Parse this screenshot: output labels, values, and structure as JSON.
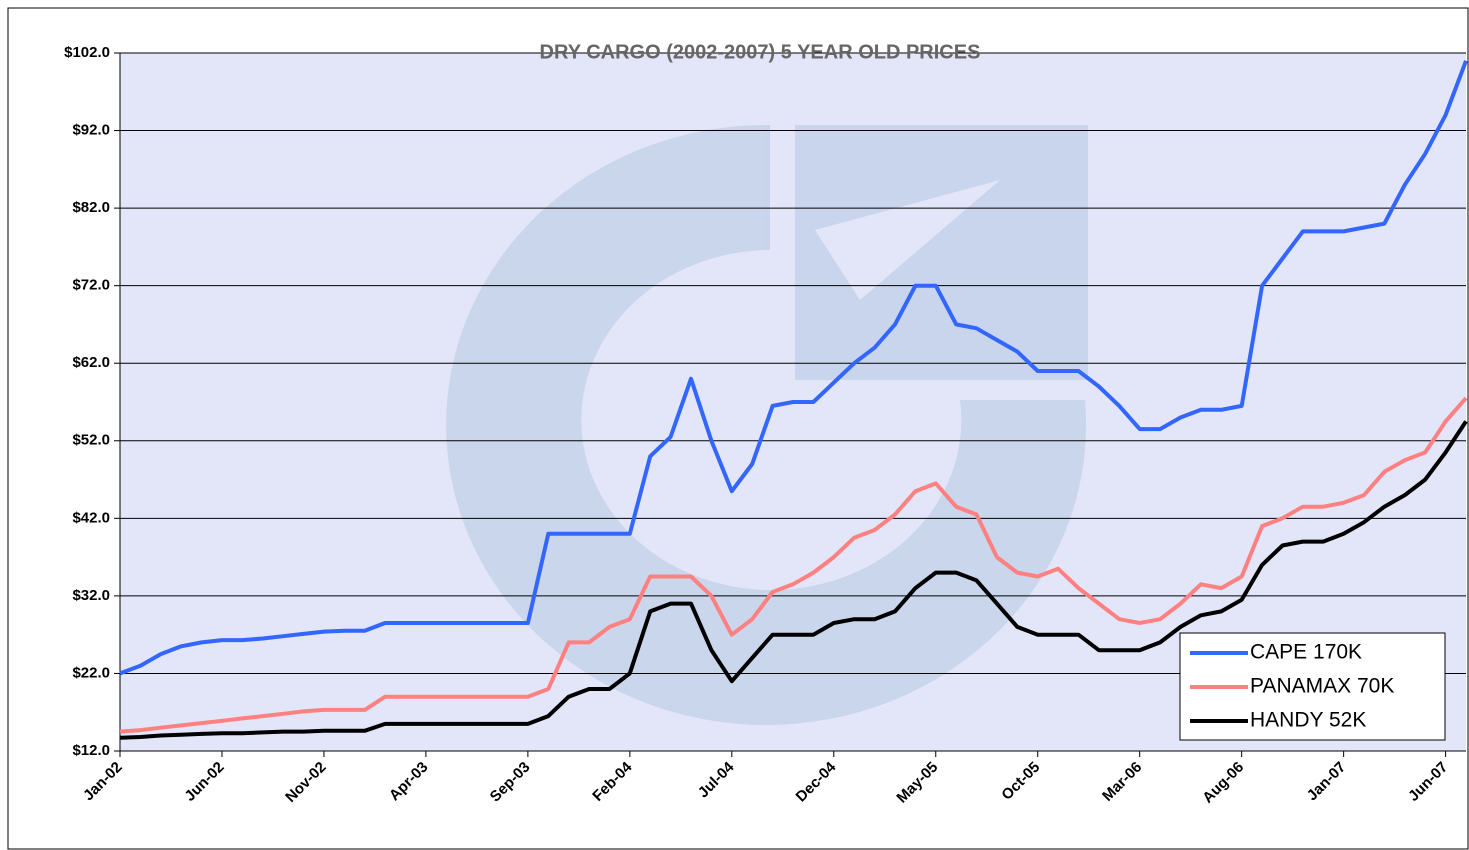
{
  "chart_data": {
    "type": "line",
    "title": "DRY CARGO (2002-2007) 5 YEAR OLD PRICES",
    "categories": [
      "Jan-02",
      null,
      null,
      null,
      null,
      "Jun-02",
      null,
      null,
      null,
      null,
      "Nov-02",
      null,
      null,
      null,
      null,
      "Apr-03",
      null,
      null,
      null,
      null,
      "Sep-03",
      null,
      null,
      null,
      null,
      "Feb-04",
      null,
      null,
      null,
      null,
      "Jul-04",
      null,
      null,
      null,
      null,
      "Dec-04",
      null,
      null,
      null,
      null,
      "May-05",
      null,
      null,
      null,
      null,
      "Oct-05",
      null,
      null,
      null,
      null,
      "Mar-06",
      null,
      null,
      null,
      null,
      "Aug-06",
      null,
      null,
      null,
      null,
      "Jan-07",
      null,
      null,
      null,
      null,
      "Jun-07",
      null
    ],
    "series": [
      {
        "name": "CAPE 170K",
        "color": "#3366ff",
        "values": [
          22,
          23,
          24.5,
          25.5,
          26,
          26.3,
          26.3,
          26.5,
          26.8,
          27.1,
          27.4,
          27.5,
          27.5,
          28.5,
          28.5,
          28.5,
          28.5,
          28.5,
          28.5,
          28.5,
          28.5,
          40,
          40,
          40,
          40,
          40,
          50,
          52.5,
          60,
          52,
          45.5,
          49,
          56.5,
          57,
          57,
          59.5,
          62,
          64,
          67,
          72,
          72,
          67,
          66.5,
          65,
          63.5,
          61,
          61,
          61,
          59,
          56.5,
          53.5,
          53.5,
          55,
          56,
          56,
          56.5,
          72,
          75.5,
          79,
          79,
          79,
          79.5,
          80,
          85,
          89,
          94,
          101
        ]
      },
      {
        "name": "PANAMAX 70K",
        "color": "#ff8080",
        "values": [
          14.5,
          14.7,
          15,
          15.3,
          15.6,
          15.9,
          16.2,
          16.5,
          16.8,
          17.1,
          17.3,
          17.3,
          17.3,
          19,
          19,
          19,
          19,
          19,
          19,
          19,
          19,
          20,
          26,
          26,
          28,
          29,
          34.5,
          34.5,
          34.5,
          32,
          27,
          29,
          32.5,
          33.5,
          35,
          37,
          39.5,
          40.5,
          42.5,
          45.5,
          46.5,
          43.5,
          42.5,
          37,
          35,
          34.5,
          35.5,
          33,
          31,
          29,
          28.5,
          29,
          31,
          33.5,
          33,
          34.5,
          41,
          42,
          43.5,
          43.5,
          44,
          45,
          48,
          49.5,
          50.5,
          54.5,
          57.5
        ]
      },
      {
        "name": "HANDY 52K",
        "color": "#000000",
        "values": [
          13.7,
          13.8,
          14,
          14.1,
          14.2,
          14.3,
          14.3,
          14.4,
          14.5,
          14.5,
          14.6,
          14.6,
          14.6,
          15.5,
          15.5,
          15.5,
          15.5,
          15.5,
          15.5,
          15.5,
          15.5,
          16.5,
          19,
          20,
          20,
          22,
          30,
          31,
          31,
          25,
          21,
          24,
          27,
          27,
          27,
          28.5,
          29,
          29,
          30,
          33,
          35,
          35,
          34,
          31,
          28,
          27,
          27,
          27,
          25,
          25,
          25,
          26,
          28,
          29.5,
          30,
          31.5,
          36,
          38.5,
          39,
          39,
          40,
          41.5,
          43.5,
          45,
          47,
          50.5,
          54.5
        ]
      }
    ],
    "ylim": [
      12,
      102
    ],
    "yticks": [
      {
        "value": 12,
        "label": "$12.0"
      },
      {
        "value": 22,
        "label": "$22.0"
      },
      {
        "value": 32,
        "label": "$32.0"
      },
      {
        "value": 42,
        "label": "$42.0"
      },
      {
        "value": 52,
        "label": "$52.0"
      },
      {
        "value": 62,
        "label": "$62.0"
      },
      {
        "value": 72,
        "label": "$72.0"
      },
      {
        "value": 82,
        "label": "$82.0"
      },
      {
        "value": 92,
        "label": "$92.0"
      },
      {
        "value": 102,
        "label": "$102.0"
      }
    ],
    "grid": true,
    "legend": "lower right",
    "plot_background": "#e3e6f8"
  }
}
